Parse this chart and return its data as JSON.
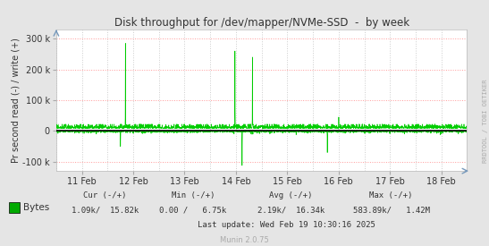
{
  "title": "Disk throughput for /dev/mapper/NVMe-SSD  -  by week",
  "ylabel": "Pr second read (-) / write (+)",
  "xlabel_dates": [
    "11 Feb",
    "12 Feb",
    "13 Feb",
    "14 Feb",
    "15 Feb",
    "16 Feb",
    "17 Feb",
    "18 Feb"
  ],
  "xlim": [
    0,
    8
  ],
  "ylim": [
    -130000,
    330000
  ],
  "yticks": [
    -100000,
    0,
    100000,
    200000,
    300000
  ],
  "ytick_labels": [
    "-100 k",
    "0",
    "100 k",
    "200 k",
    "300 k"
  ],
  "bg_color": "#e5e5e5",
  "plot_bg_color": "#ffffff",
  "grid_color": "#ff9999",
  "vgrid_color": "#cccccc",
  "line_color": "#00cc00",
  "zero_line_color": "#000000",
  "legend_square_color": "#00aa00",
  "legend_text": "Bytes",
  "footer_cur_label": "Cur (-/+)",
  "footer_cur_val": "1.09k/  15.82k",
  "footer_min_label": "Min (-/+)",
  "footer_min_val": "0.00 /   6.75k",
  "footer_avg_label": "Avg (-/+)",
  "footer_avg_val": "2.19k/  16.34k",
  "footer_max_label": "Max (-/+)",
  "footer_max_val": "583.89k/   1.42M",
  "footer_update": "Last update: Wed Feb 19 10:30:16 2025",
  "munin_version": "Munin 2.0.75",
  "side_label": "RRDTOOL / TOBI OETIKER",
  "watermark_color": "#aaaaaa",
  "text_color": "#333333"
}
